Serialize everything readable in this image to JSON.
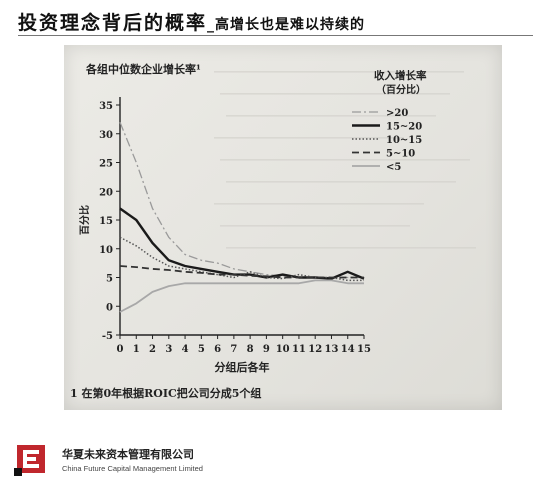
{
  "header": {
    "title": "投资理念背后的概率",
    "subtitle": "_高增长也是难以持续的"
  },
  "footer": {
    "company_cn": "华夏未来资本管理有限公司",
    "company_en": "China Future Capital Management Limited",
    "logo_icon": "company-logo-icon",
    "brand_color": "#c0272d"
  },
  "chart_data": {
    "type": "line",
    "title": "各组中位数企业增长率¹",
    "ylabel": "百分比",
    "xlabel": "分组后各年",
    "footnote": "1 在第0年根据ROIC把公司分成5个组",
    "legend_title": "收入增长率",
    "legend_subtitle": "（百分比）",
    "legend_position": "top-right",
    "x": [
      0,
      1,
      2,
      3,
      4,
      5,
      6,
      7,
      8,
      9,
      10,
      11,
      12,
      13,
      14,
      15
    ],
    "xlim": [
      0,
      15
    ],
    "ylim": [
      -5,
      35
    ],
    "yticks": [
      -5,
      0,
      5,
      10,
      15,
      20,
      25,
      30,
      35
    ],
    "xticks": [
      0,
      1,
      2,
      3,
      4,
      5,
      6,
      7,
      8,
      9,
      10,
      11,
      12,
      13,
      14,
      15
    ],
    "series": [
      {
        "name": ">20",
        "style": "dashdot",
        "color": "#9a9a9a",
        "values": [
          32,
          25,
          17,
          12,
          9,
          8,
          7.5,
          6.5,
          6,
          5.5,
          5.3,
          5,
          5,
          5,
          5,
          5
        ]
      },
      {
        "name": "15~20",
        "style": "solid-thick",
        "color": "#1a1a1a",
        "values": [
          17,
          15,
          11,
          8,
          7,
          6.5,
          6,
          5.5,
          5.5,
          5,
          5.5,
          5,
          5,
          4.8,
          6,
          4.8
        ]
      },
      {
        "name": "10~15",
        "style": "dotted",
        "color": "#555555",
        "values": [
          12,
          10.5,
          8.5,
          7,
          6.5,
          6,
          5.5,
          5,
          6,
          5,
          4.8,
          5.5,
          5,
          5,
          4.5,
          4.5
        ]
      },
      {
        "name": "5~10",
        "style": "dashed",
        "color": "#333333",
        "values": [
          7,
          6.8,
          6.5,
          6.3,
          6,
          5.8,
          5.5,
          5.5,
          5.3,
          5.2,
          5,
          5,
          5,
          5,
          5,
          5
        ]
      },
      {
        "name": "<5",
        "style": "solid-gray",
        "color": "#a8a8a8",
        "values": [
          -1,
          0.5,
          2.5,
          3.5,
          4,
          4,
          4,
          4,
          4,
          4,
          4,
          4,
          4.5,
          4.5,
          4,
          4
        ]
      }
    ]
  }
}
